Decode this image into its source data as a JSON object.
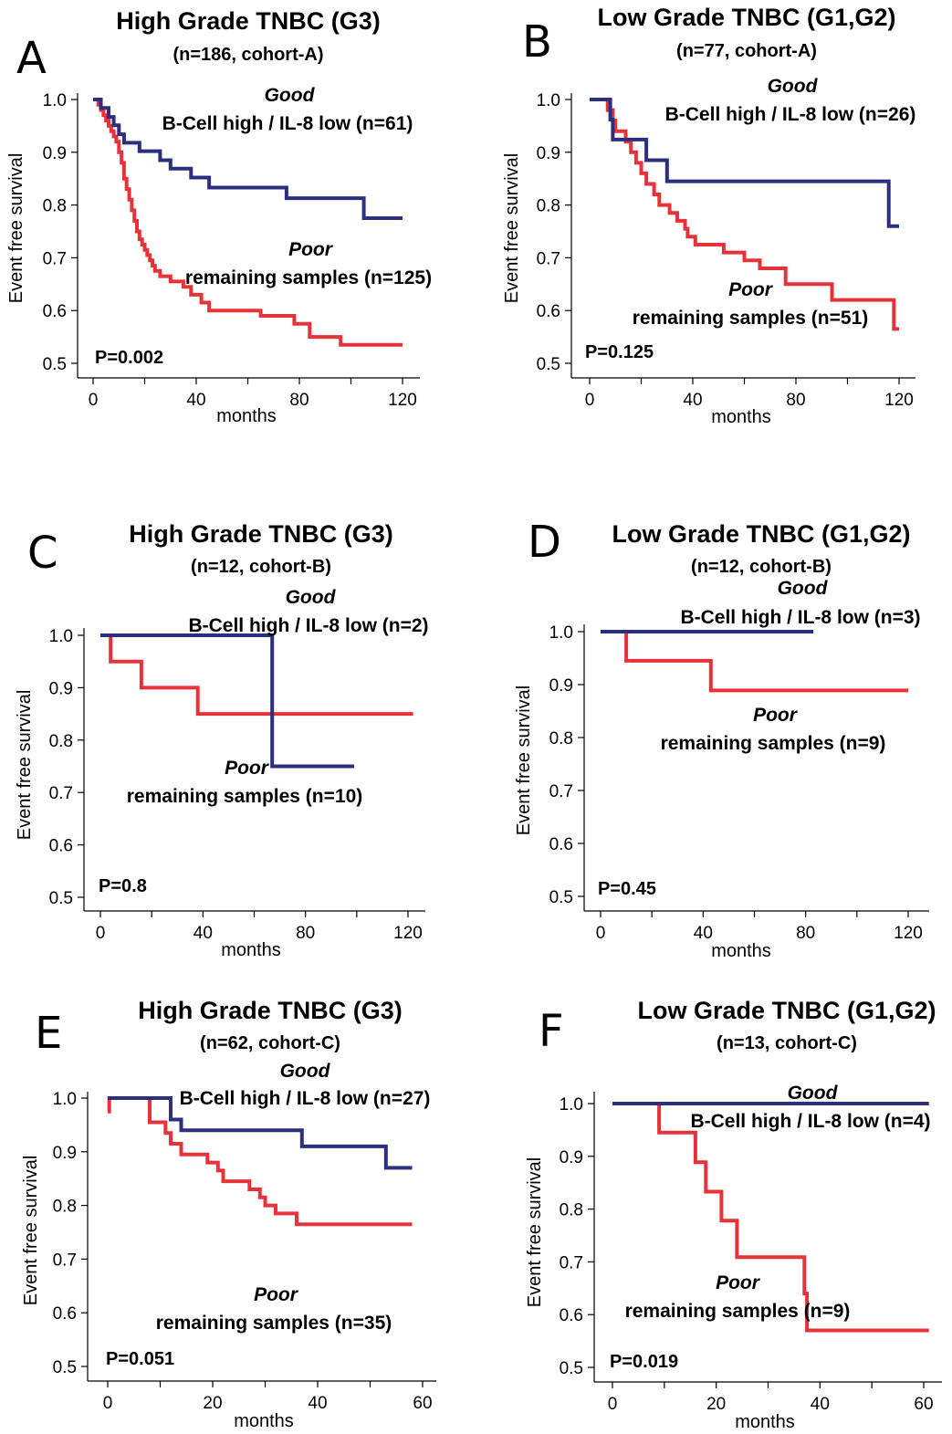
{
  "colors": {
    "good": "#2b2f7e",
    "poor": "#e8323a"
  },
  "chart_data": [
    {
      "type": "line",
      "panel": "A",
      "title": "High Grade TNBC (G3)",
      "subtitle": "(n=186, cohort-A)",
      "xlabel": "months",
      "ylabel": "Event free survival",
      "xlim": [
        0,
        120
      ],
      "ylim": [
        0.5,
        1.0
      ],
      "xticks": [
        0,
        40,
        80,
        120
      ],
      "yticks": [
        "0.5",
        "0.6",
        "0.7",
        "0.8",
        "0.9",
        "1.0"
      ],
      "p_value": "P=0.002",
      "series": [
        {
          "name": "B-Cell high / IL-8 low  (n=61)",
          "group": "Good",
          "color": "#2b2f7e",
          "steps": [
            [
              0,
              1.0
            ],
            [
              3,
              0.984
            ],
            [
              6,
              0.967
            ],
            [
              8,
              0.951
            ],
            [
              10,
              0.934
            ],
            [
              12,
              0.918
            ],
            [
              18,
              0.902
            ],
            [
              26,
              0.885
            ],
            [
              30,
              0.869
            ],
            [
              38,
              0.852
            ],
            [
              45,
              0.833
            ],
            [
              75,
              0.813
            ],
            [
              105,
              0.775
            ],
            [
              120,
              0.775
            ]
          ]
        },
        {
          "name": "remaining samples (n=125)",
          "group": "Poor",
          "color": "#e8323a",
          "steps": [
            [
              0,
              1.0
            ],
            [
              2,
              0.99
            ],
            [
              3,
              0.98
            ],
            [
              4,
              0.97
            ],
            [
              5,
              0.96
            ],
            [
              6,
              0.95
            ],
            [
              7,
              0.94
            ],
            [
              8,
              0.93
            ],
            [
              9,
              0.92
            ],
            [
              10,
              0.9
            ],
            [
              11,
              0.88
            ],
            [
              12,
              0.85
            ],
            [
              13,
              0.83
            ],
            [
              14,
              0.81
            ],
            [
              15,
              0.79
            ],
            [
              16,
              0.77
            ],
            [
              17,
              0.75
            ],
            [
              18,
              0.735
            ],
            [
              19,
              0.725
            ],
            [
              20,
              0.715
            ],
            [
              21,
              0.705
            ],
            [
              22,
              0.695
            ],
            [
              23,
              0.685
            ],
            [
              24,
              0.675
            ],
            [
              26,
              0.665
            ],
            [
              30,
              0.655
            ],
            [
              35,
              0.645
            ],
            [
              38,
              0.63
            ],
            [
              42,
              0.615
            ],
            [
              45,
              0.6
            ],
            [
              65,
              0.59
            ],
            [
              78,
              0.575
            ],
            [
              84,
              0.55
            ],
            [
              96,
              0.535
            ],
            [
              120,
              0.535
            ]
          ]
        }
      ]
    },
    {
      "type": "line",
      "panel": "B",
      "title": "Low Grade TNBC (G1,G2)",
      "subtitle": "(n=77, cohort-A)",
      "xlabel": "months",
      "ylabel": "Event free survival",
      "xlim": [
        0,
        120
      ],
      "ylim": [
        0.5,
        1.0
      ],
      "xticks": [
        0,
        40,
        80,
        120
      ],
      "yticks": [
        "0.5",
        "0.6",
        "0.7",
        "0.8",
        "0.9",
        "1.0"
      ],
      "p_value": "P=0.125",
      "series": [
        {
          "name": "B-Cell high / IL-8 low  (n=26)",
          "group": "Good",
          "color": "#2b2f7e",
          "steps": [
            [
              0,
              1.0
            ],
            [
              8,
              0.962
            ],
            [
              9,
              0.924
            ],
            [
              22,
              0.885
            ],
            [
              30,
              0.845
            ],
            [
              116,
              0.76
            ],
            [
              120,
              0.76
            ]
          ]
        },
        {
          "name": "remaining samples (n=51)",
          "group": "Poor",
          "color": "#e8323a",
          "steps": [
            [
              0,
              1.0
            ],
            [
              7,
              0.98
            ],
            [
              9,
              0.96
            ],
            [
              10,
              0.94
            ],
            [
              14,
              0.92
            ],
            [
              16,
              0.9
            ],
            [
              18,
              0.88
            ],
            [
              20,
              0.86
            ],
            [
              22,
              0.84
            ],
            [
              25,
              0.82
            ],
            [
              27,
              0.8
            ],
            [
              31,
              0.785
            ],
            [
              34,
              0.77
            ],
            [
              37,
              0.755
            ],
            [
              38,
              0.74
            ],
            [
              41,
              0.725
            ],
            [
              52,
              0.71
            ],
            [
              60,
              0.695
            ],
            [
              66,
              0.68
            ],
            [
              76,
              0.65
            ],
            [
              94,
              0.62
            ],
            [
              118,
              0.565
            ],
            [
              120,
              0.565
            ]
          ]
        }
      ]
    },
    {
      "type": "line",
      "panel": "C",
      "title": "High Grade TNBC (G3)",
      "subtitle": "(n=12, cohort-B)",
      "xlabel": "months",
      "ylabel": "Event free survival",
      "xlim": [
        0,
        120
      ],
      "ylim": [
        0.5,
        1.0
      ],
      "xticks": [
        0,
        40,
        80,
        120
      ],
      "yticks": [
        "0.5",
        "0.6",
        "0.7",
        "0.8",
        "0.9",
        "1.0"
      ],
      "p_value": "P=0.8",
      "series": [
        {
          "name": "B-Cell high / IL-8 low  (n=2)",
          "group": "Good",
          "color": "#2b2f7e",
          "steps": [
            [
              0,
              1.0
            ],
            [
              67,
              0.75
            ],
            [
              99,
              0.75
            ]
          ]
        },
        {
          "name": "remaining samples (n=10)",
          "group": "Poor",
          "color": "#e8323a",
          "steps": [
            [
              0,
              1.0
            ],
            [
              4,
              0.95
            ],
            [
              16,
              0.9
            ],
            [
              38,
              0.85
            ],
            [
              122,
              0.85
            ]
          ]
        }
      ]
    },
    {
      "type": "line",
      "panel": "D",
      "title": "Low Grade TNBC (G1,G2)",
      "subtitle": "(n=12, cohort-B)",
      "xlabel": "months",
      "ylabel": "Event free survival",
      "xlim": [
        0,
        120
      ],
      "ylim": [
        0.5,
        1.0
      ],
      "xticks": [
        0,
        40,
        80,
        120
      ],
      "yticks": [
        "0.5",
        "0.6",
        "0.7",
        "0.8",
        "0.9",
        "1.0"
      ],
      "p_value": "P=0.45",
      "series": [
        {
          "name": "B-Cell high / IL-8 low  (n=3)",
          "group": "Good",
          "color": "#2b2f7e",
          "steps": [
            [
              0,
              1.0
            ],
            [
              83,
              1.0
            ]
          ]
        },
        {
          "name": "remaining samples (n=9)",
          "group": "Poor",
          "color": "#e8323a",
          "steps": [
            [
              0,
              1.0
            ],
            [
              10,
              0.945
            ],
            [
              43,
              0.889
            ],
            [
              120,
              0.889
            ]
          ]
        }
      ]
    },
    {
      "type": "line",
      "panel": "E",
      "title": "High Grade TNBC (G3)",
      "subtitle": "(n=62, cohort-C)",
      "xlabel": "months",
      "ylabel": "Event free survival",
      "xlim": [
        0,
        60
      ],
      "ylim": [
        0.5,
        1.0
      ],
      "xticks": [
        0,
        20,
        40,
        60
      ],
      "yticks": [
        "0.5",
        "0.6",
        "0.7",
        "0.8",
        "0.9",
        "1.0"
      ],
      "p_value": "P=0.051",
      "series": [
        {
          "name": "B-Cell high / IL-8 low  (n=27)",
          "group": "Good",
          "color": "#2b2f7e",
          "steps": [
            [
              0,
              1.0
            ],
            [
              12,
              0.96
            ],
            [
              14,
              0.94
            ],
            [
              37,
              0.91
            ],
            [
              53,
              0.87
            ],
            [
              58,
              0.87
            ]
          ]
        },
        {
          "name": "remaining samples (n=35)",
          "group": "Poor",
          "color": "#e8323a",
          "steps": [
            [
              0,
              0.975
            ],
            [
              0.3,
              1.0
            ],
            [
              8,
              0.955
            ],
            [
              11,
              0.935
            ],
            [
              12,
              0.915
            ],
            [
              14,
              0.895
            ],
            [
              19,
              0.88
            ],
            [
              21,
              0.865
            ],
            [
              22,
              0.845
            ],
            [
              27,
              0.83
            ],
            [
              29,
              0.815
            ],
            [
              30,
              0.8
            ],
            [
              32,
              0.785
            ],
            [
              36,
              0.765
            ],
            [
              58,
              0.765
            ]
          ]
        }
      ]
    },
    {
      "type": "line",
      "panel": "F",
      "title": "Low Grade TNBC (G1,G2)",
      "subtitle": "(n=13, cohort-C)",
      "xlabel": "months",
      "ylabel": "Event free survival",
      "xlim": [
        0,
        60
      ],
      "ylim": [
        0.5,
        1.0
      ],
      "xticks": [
        0,
        20,
        40,
        60
      ],
      "yticks": [
        "0.5",
        "0.6",
        "0.7",
        "0.8",
        "0.9",
        "1.0"
      ],
      "p_value": "P=0.019",
      "series": [
        {
          "name": "B-Cell high / IL-8 low  (n=4)",
          "group": "Good",
          "color": "#2b2f7e",
          "steps": [
            [
              0,
              1.0
            ],
            [
              61,
              1.0
            ]
          ]
        },
        {
          "name": "remaining samples (n=9)",
          "group": "Poor",
          "color": "#e8323a",
          "steps": [
            [
              0,
              1.0
            ],
            [
              9,
              0.945
            ],
            [
              16,
              0.889
            ],
            [
              18,
              0.833
            ],
            [
              21,
              0.778
            ],
            [
              24,
              0.709
            ],
            [
              37,
              0.64
            ],
            [
              37.5,
              0.57
            ],
            [
              61,
              0.57
            ]
          ]
        }
      ]
    }
  ]
}
